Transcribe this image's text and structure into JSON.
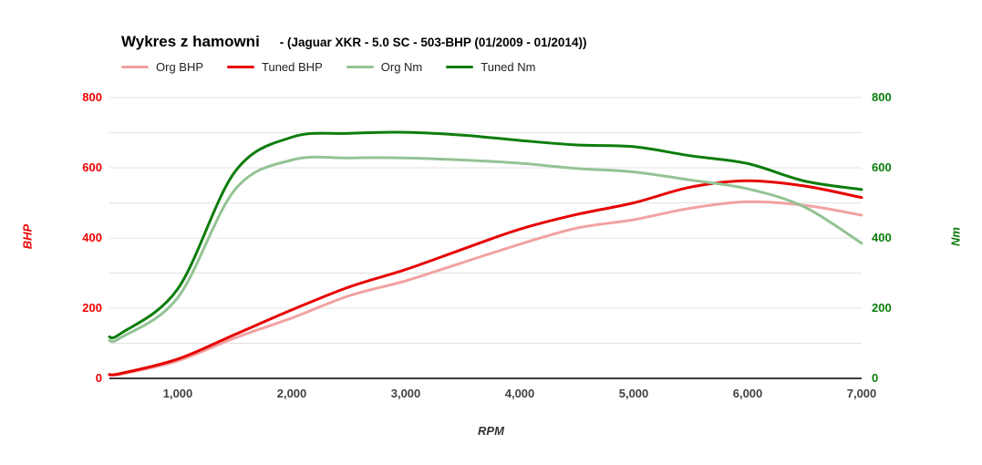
{
  "header": {
    "title": "Wykres z hamowni",
    "subtitle": "- (Jaguar XKR - 5.0 SC - 503-BHP (01/2009 - 01/2014))"
  },
  "legend": [
    {
      "label": "Org BHP",
      "color": "#f2a2a2"
    },
    {
      "label": "Tuned BHP",
      "color": "#e60000"
    },
    {
      "label": "Org Nm",
      "color": "#94c394"
    },
    {
      "label": "Tuned Nm",
      "color": "#0d7d0d"
    }
  ],
  "chart_data": {
    "type": "line",
    "title": "Wykres z hamowni - (Jaguar XKR - 5.0 SC - 503-BHP (01/2009 - 01/2014))",
    "xlabel": "RPM",
    "ylabel_left": "BHP",
    "ylabel_right": "Nm",
    "xlim": [
      400,
      7000
    ],
    "ylim": [
      0,
      800
    ],
    "grid": "horizontal, every 100, labels every 200",
    "legend_position": "top-left",
    "x": [
      400,
      500,
      1000,
      1500,
      2000,
      2500,
      3000,
      3500,
      4000,
      4500,
      5000,
      5500,
      6000,
      6500,
      7000
    ],
    "series": [
      {
        "name": "Org BHP",
        "axis": "left",
        "color": "#f2a2a2",
        "values": [
          10,
          12,
          50,
          115,
          172,
          235,
          278,
          330,
          382,
          428,
          452,
          485,
          503,
          493,
          465
        ]
      },
      {
        "name": "Tuned BHP",
        "axis": "left",
        "color": "#e60000",
        "values": [
          11,
          14,
          55,
          125,
          195,
          260,
          310,
          368,
          425,
          467,
          500,
          545,
          563,
          548,
          515
        ]
      },
      {
        "name": "Org Nm",
        "axis": "right",
        "color": "#94c394",
        "values": [
          108,
          116,
          230,
          537,
          622,
          628,
          628,
          622,
          613,
          598,
          588,
          565,
          540,
          488,
          385
        ]
      },
      {
        "name": "Tuned Nm",
        "axis": "right",
        "color": "#0d7d0d",
        "values": [
          118,
          128,
          255,
          588,
          687,
          698,
          701,
          693,
          678,
          665,
          660,
          634,
          612,
          562,
          538
        ]
      }
    ],
    "x_ticks": [
      "1,000",
      "2,000",
      "3,000",
      "4,000",
      "5,000",
      "6,000",
      "7,000"
    ],
    "x_tick_values": [
      1000,
      2000,
      3000,
      4000,
      5000,
      6000,
      7000
    ],
    "y_ticks_left": [
      "0",
      "200",
      "400",
      "600",
      "800"
    ],
    "y_ticks_right": [
      "0",
      "200",
      "400",
      "600",
      "800"
    ],
    "y_tick_values": [
      0,
      200,
      400,
      600,
      800
    ],
    "colors": {
      "bhp_axis": "#ee0000",
      "nm_axis": "#0a7d0a",
      "gridline": "#e3e3e3",
      "baseline": "#3d3d3d",
      "x_tick_text": "#424242"
    }
  }
}
